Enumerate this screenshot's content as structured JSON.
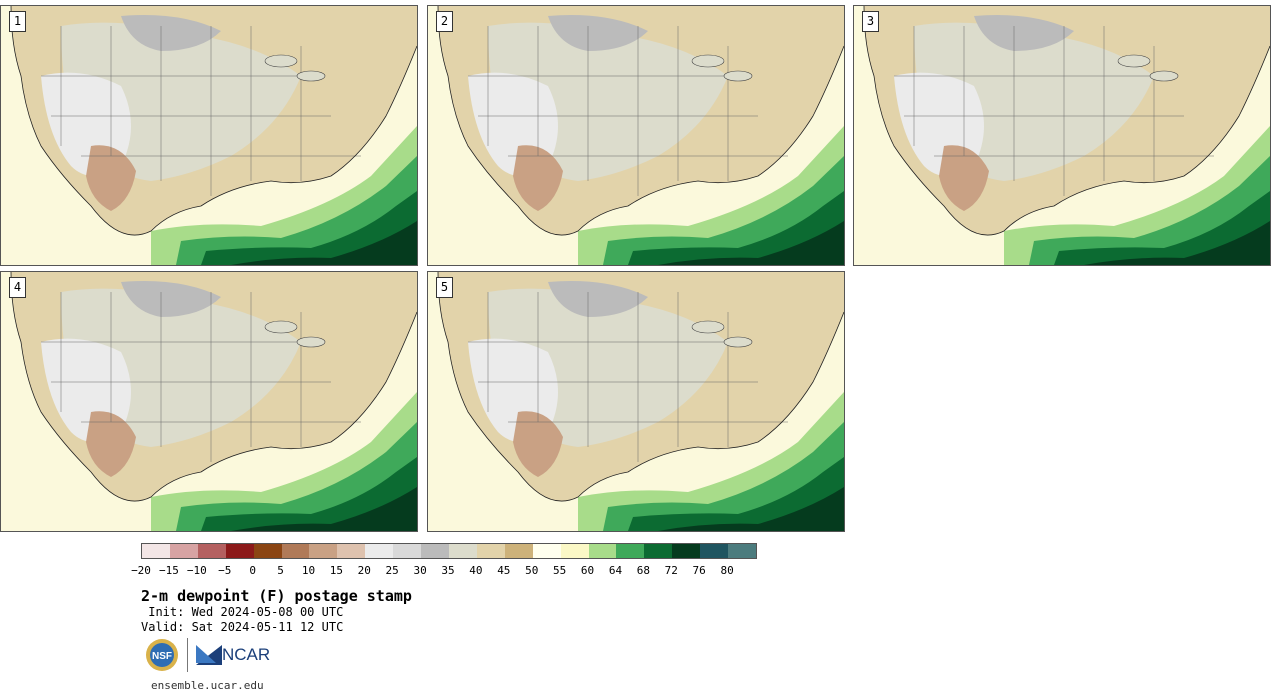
{
  "panels": [
    {
      "label": "1"
    },
    {
      "label": "2"
    },
    {
      "label": "3"
    },
    {
      "label": "4"
    },
    {
      "label": "5"
    }
  ],
  "colorbar": {
    "colors": [
      "#f3e6e6",
      "#d7a3a3",
      "#b46060",
      "#8c1a1a",
      "#8b4513",
      "#b07a58",
      "#c9a184",
      "#dec2ae",
      "#ebebeb",
      "#d9d9d9",
      "#bbbbbb",
      "#dcdccc",
      "#e2d3aa",
      "#cdb27a",
      "#ffffee",
      "#fbf8c6",
      "#a8dc8a",
      "#3fa95a",
      "#0c6b32",
      "#053b1e",
      "#1f5560",
      "#4c7c7e"
    ],
    "ticks": [
      "−20",
      "−15",
      "−10",
      "−5",
      "0",
      "5",
      "10",
      "15",
      "20",
      "25",
      "30",
      "35",
      "40",
      "45",
      "50",
      "55",
      "60",
      "64",
      "68",
      "72",
      "76",
      "80"
    ]
  },
  "title": "2-m dewpoint (F) postage stamp",
  "init": " Init: Wed 2024-05-08 00 UTC",
  "valid": "Valid: Sat 2024-05-11 12 UTC",
  "logos": {
    "nsf_text": "NSF",
    "ncar_text": "NCAR"
  },
  "site": "ensemble.ucar.edu"
}
